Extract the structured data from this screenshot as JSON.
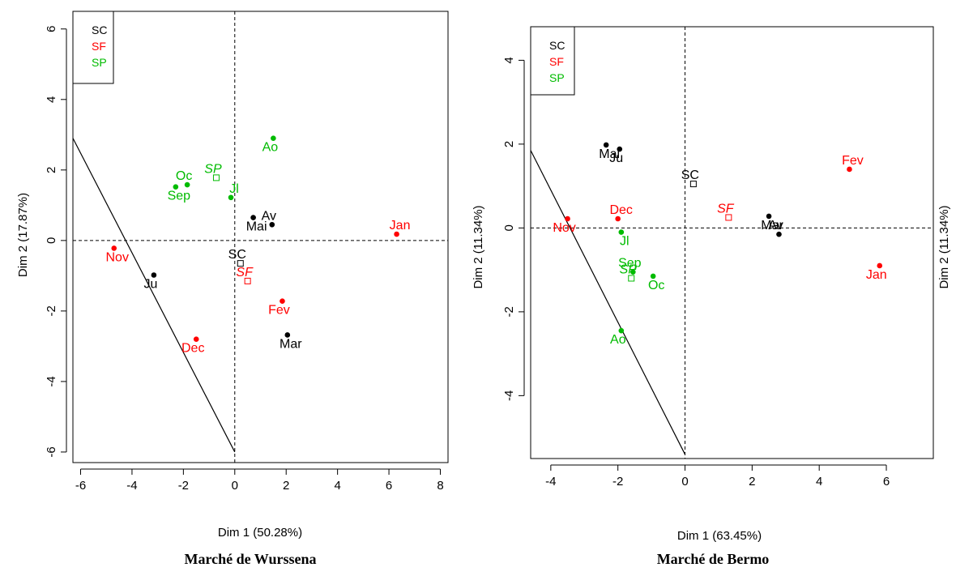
{
  "colors": {
    "SC": "#000000",
    "SF": "#ff0000",
    "SP": "#00bb00"
  },
  "chart_data": [
    {
      "type": "scatter",
      "caption": "Marché de Wurssena",
      "xlabel": "Dim 1 (50.28%)",
      "ylabel": "Dim 2 (17.87%)",
      "xlim": [
        -6.3,
        8.3
      ],
      "ylim": [
        -6.3,
        6.5
      ],
      "xticks": [
        -6,
        -4,
        -2,
        0,
        2,
        4,
        6,
        8
      ],
      "yticks": [
        -6,
        -4,
        -2,
        0,
        2,
        4,
        6
      ],
      "legend": {
        "position": "top-left",
        "entries": [
          "SC",
          "SF",
          "SP"
        ]
      },
      "points": [
        {
          "label": "Jan",
          "group": "SF",
          "x": 6.3,
          "y": 0.18
        },
        {
          "label": "Fev",
          "group": "SF",
          "x": 1.85,
          "y": -1.72
        },
        {
          "label": "Mar",
          "group": "SC",
          "x": 2.05,
          "y": -2.68
        },
        {
          "label": "Av",
          "group": "SC",
          "x": 1.45,
          "y": 0.45
        },
        {
          "label": "Mai",
          "group": "SC",
          "x": 0.72,
          "y": 0.65
        },
        {
          "label": "Ju",
          "group": "SC",
          "x": -3.15,
          "y": -0.98
        },
        {
          "label": "Jl",
          "group": "SP",
          "x": -0.15,
          "y": 1.22
        },
        {
          "label": "Ao",
          "group": "SP",
          "x": 1.5,
          "y": 2.9
        },
        {
          "label": "Sep",
          "group": "SP",
          "x": -2.3,
          "y": 1.52
        },
        {
          "label": "Oc",
          "group": "SP",
          "x": -1.85,
          "y": 1.58
        },
        {
          "label": "Nov",
          "group": "SF",
          "x": -4.7,
          "y": -0.22
        },
        {
          "label": "Dec",
          "group": "SF",
          "x": -1.5,
          "y": -2.8
        }
      ],
      "centroids": [
        {
          "label": "SC",
          "group": "SC",
          "x": 0.22,
          "y": -0.65
        },
        {
          "label": "SF",
          "group": "SF",
          "x": 0.5,
          "y": -1.15
        },
        {
          "label": "SP",
          "group": "SP",
          "x": -0.72,
          "y": 1.78
        }
      ],
      "line": {
        "x1": -6.3,
        "y1": 2.9,
        "x2": 0,
        "y2": -6.0
      }
    },
    {
      "type": "scatter",
      "caption": "Marché de Bermo",
      "xlabel": "Dim 1 (63.45%)",
      "ylabel": "Dim 2 (11.34%)",
      "right_label": "Dim 2 (11.34%)",
      "xlim": [
        -4.6,
        7.4
      ],
      "ylim": [
        -5.5,
        4.8
      ],
      "xticks": [
        -4,
        -2,
        0,
        2,
        4,
        6
      ],
      "yticks": [
        -4,
        -2,
        0,
        2,
        4
      ],
      "legend": {
        "position": "top-left",
        "entries": [
          "SC",
          "SF",
          "SP"
        ]
      },
      "points": [
        {
          "label": "Fev",
          "group": "SF",
          "x": 4.9,
          "y": 1.4
        },
        {
          "label": "Jan",
          "group": "SF",
          "x": 5.8,
          "y": -0.9
        },
        {
          "label": "Mar",
          "group": "SC",
          "x": 2.5,
          "y": 0.28
        },
        {
          "label": "Av",
          "group": "SC",
          "x": 2.8,
          "y": -0.15
        },
        {
          "label": "Mai",
          "group": "SC",
          "x": -2.35,
          "y": 1.98
        },
        {
          "label": "Ju",
          "group": "SC",
          "x": -1.95,
          "y": 1.88
        },
        {
          "label": "Dec",
          "group": "SF",
          "x": -2.0,
          "y": 0.22
        },
        {
          "label": "Nov",
          "group": "SF",
          "x": -3.5,
          "y": 0.22
        },
        {
          "label": "Jl",
          "group": "SP",
          "x": -1.9,
          "y": -0.1
        },
        {
          "label": "Sep",
          "group": "SP",
          "x": -1.55,
          "y": -1.05
        },
        {
          "label": "Oc",
          "group": "SP",
          "x": -0.95,
          "y": -1.15
        },
        {
          "label": "Ao",
          "group": "SP",
          "x": -1.9,
          "y": -2.45
        }
      ],
      "centroids": [
        {
          "label": "SC",
          "group": "SC",
          "x": 0.25,
          "y": 1.05
        },
        {
          "label": "SF",
          "group": "SF",
          "x": 1.3,
          "y": 0.25
        },
        {
          "label": "SP",
          "group": "SP",
          "x": -1.6,
          "y": -1.2
        }
      ],
      "line": {
        "x1": -4.6,
        "y1": 1.85,
        "x2": 0,
        "y2": -5.4
      }
    }
  ]
}
